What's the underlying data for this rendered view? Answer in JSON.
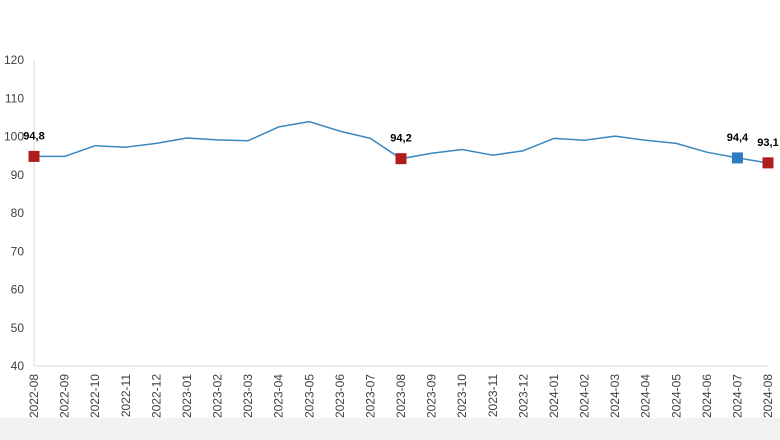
{
  "chart_data": {
    "type": "line",
    "title": "",
    "xlabel": "",
    "ylabel": "",
    "ylim": [
      40,
      120
    ],
    "yticks": [
      40,
      50,
      60,
      70,
      80,
      90,
      100,
      110,
      120
    ],
    "grid": false,
    "legend": "none",
    "categories": [
      "2022-08",
      "2022-09",
      "2022-10",
      "2022-11",
      "2022-12",
      "2023-01",
      "2023-02",
      "2023-03",
      "2023-04",
      "2023-05",
      "2023-06",
      "2023-07",
      "2023-08",
      "2023-09",
      "2023-10",
      "2023-11",
      "2023-12",
      "2024-01",
      "2024-02",
      "2024-03",
      "2024-04",
      "2024-05",
      "2024-06",
      "2024-07",
      "2024-08"
    ],
    "series": [
      {
        "values": [
          94.8,
          94.8,
          97.6,
          97.2,
          98.2,
          99.6,
          99.1,
          98.9,
          102.5,
          103.9,
          101.4,
          99.5,
          94.2,
          95.6,
          96.6,
          95.1,
          96.3,
          99.5,
          99.0,
          100.1,
          99.0,
          98.2,
          95.9,
          94.4,
          93.1
        ],
        "color": "#3a87c0"
      }
    ],
    "highlighted_points": [
      {
        "category": "2022-08",
        "value": 94.8,
        "label": "94,8",
        "color": "#b01c1c"
      },
      {
        "category": "2023-08",
        "value": 94.2,
        "label": "94,2",
        "color": "#b01c1c"
      },
      {
        "category": "2024-07",
        "value": 94.4,
        "label": "94,4",
        "color": "#2e7bbf"
      },
      {
        "category": "2024-08",
        "value": 93.1,
        "label": "93,1",
        "color": "#b01c1c"
      }
    ],
    "colors": {
      "line": "#3a87c0",
      "axis": "#d9d9d9",
      "tick_text": "#404040"
    }
  }
}
